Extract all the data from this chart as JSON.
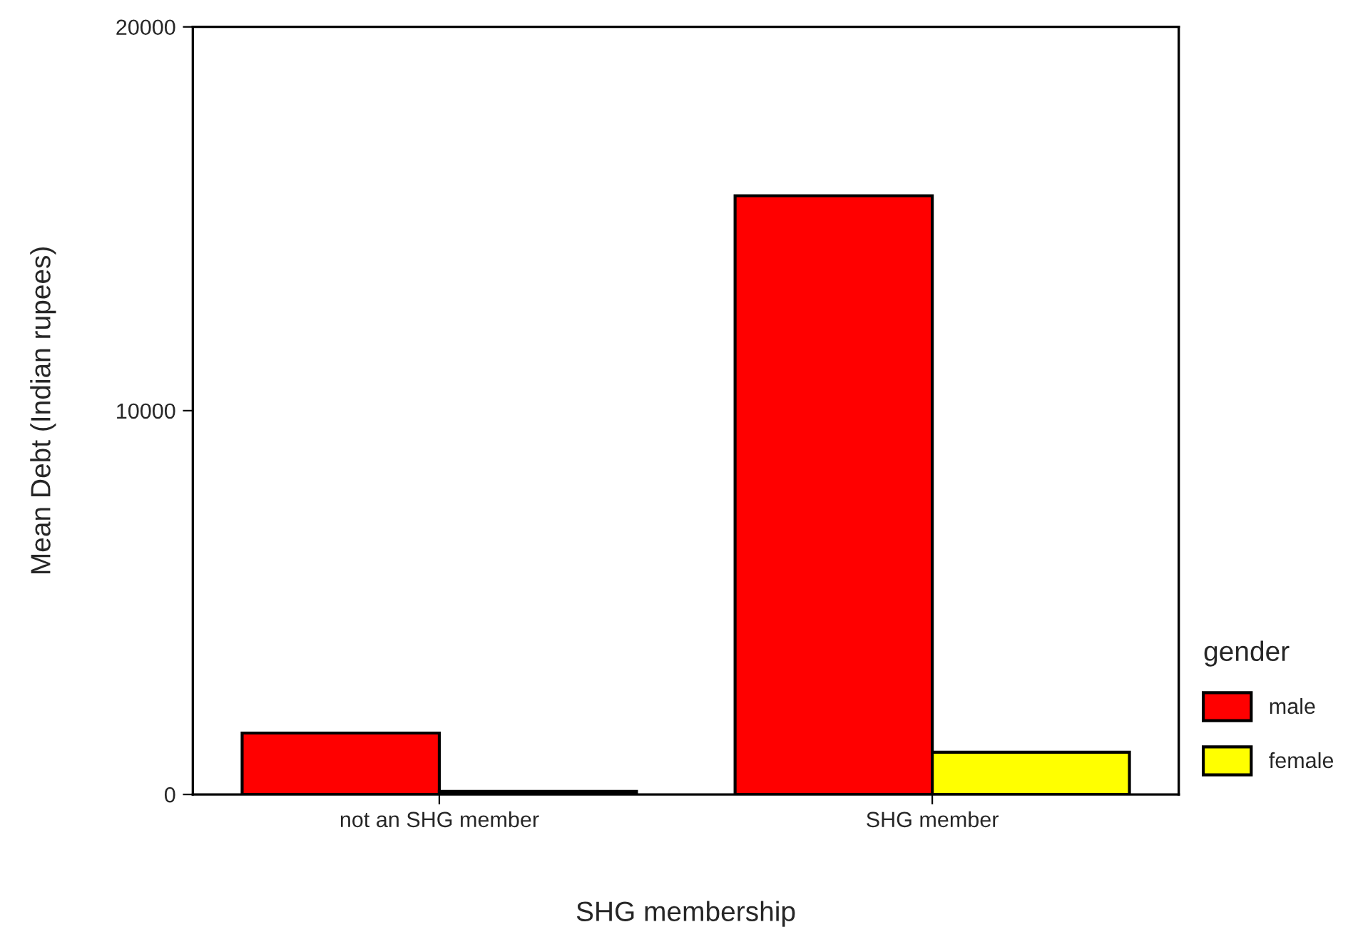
{
  "chart_data": {
    "type": "bar",
    "xlabel": "SHG membership",
    "ylabel": "Mean Debt (Indian rupees)",
    "legend_title": "gender",
    "categories": [
      "not an SHG member",
      "SHG member"
    ],
    "series": [
      {
        "name": "male",
        "color": "#ff0000",
        "values": [
          1600,
          15600
        ]
      },
      {
        "name": "female",
        "color": "#ffff00",
        "values": [
          80,
          1100
        ]
      }
    ],
    "ylim": [
      0,
      20000
    ],
    "yticks": [
      0,
      10000,
      20000
    ],
    "grid": false,
    "legend": "bottom right"
  }
}
